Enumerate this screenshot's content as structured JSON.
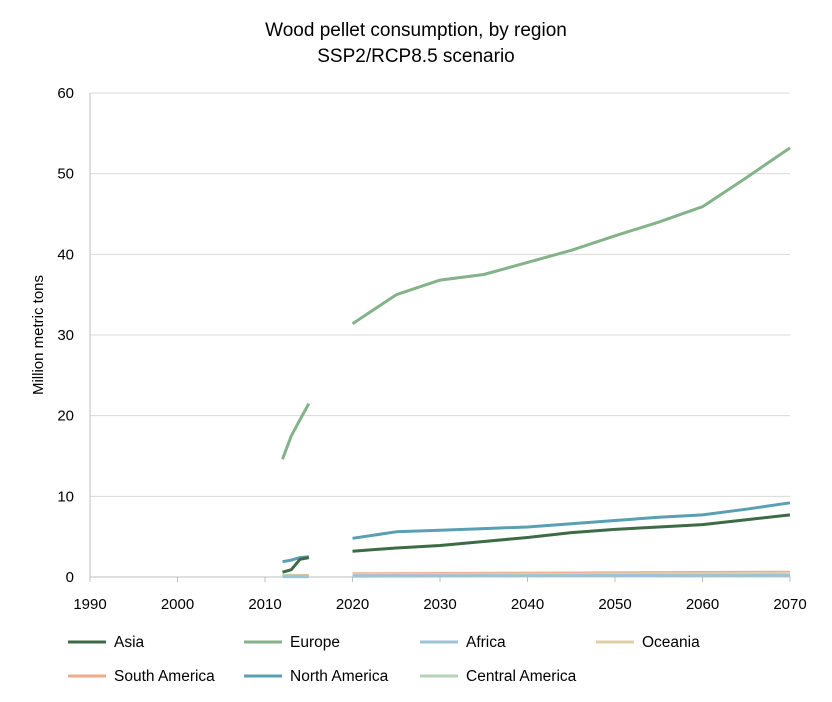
{
  "chart_data": {
    "type": "line",
    "title": "Wood pellet consumption, by region",
    "subtitle": "SSP2/RCP8.5 scenario",
    "xlabel": "",
    "ylabel": "Million metric tons",
    "xlim": [
      1990,
      2070
    ],
    "ylim": [
      0,
      60
    ],
    "x_ticks": [
      1990,
      2000,
      2010,
      2020,
      2030,
      2040,
      2050,
      2060,
      2070
    ],
    "y_ticks": [
      0,
      10,
      20,
      30,
      40,
      50,
      60
    ],
    "grid": "horizontal",
    "legend_position": "bottom",
    "series": [
      {
        "name": "Asia",
        "color": "#3d6b45",
        "segments": [
          [
            [
              2012,
              0.6
            ],
            [
              2013,
              0.9
            ],
            [
              2014,
              2.2
            ],
            [
              2015,
              2.4
            ]
          ],
          [
            [
              2020,
              3.2
            ],
            [
              2025,
              3.6
            ],
            [
              2030,
              3.9
            ],
            [
              2035,
              4.4
            ],
            [
              2040,
              4.9
            ],
            [
              2045,
              5.5
            ],
            [
              2050,
              5.9
            ],
            [
              2055,
              6.2
            ],
            [
              2060,
              6.5
            ],
            [
              2065,
              7.1
            ],
            [
              2070,
              7.7
            ]
          ]
        ]
      },
      {
        "name": "Europe",
        "color": "#84b38a",
        "segments": [
          [
            [
              2012,
              14.6
            ],
            [
              2013,
              17.5
            ],
            [
              2014,
              19.5
            ],
            [
              2015,
              21.5
            ]
          ],
          [
            [
              2020,
              31.4
            ],
            [
              2025,
              35.0
            ],
            [
              2030,
              36.8
            ],
            [
              2035,
              37.5
            ],
            [
              2040,
              39.0
            ],
            [
              2045,
              40.5
            ],
            [
              2050,
              42.3
            ],
            [
              2055,
              44.0
            ],
            [
              2060,
              45.9
            ],
            [
              2065,
              49.5
            ],
            [
              2070,
              53.2
            ]
          ]
        ]
      },
      {
        "name": "Africa",
        "color": "#9cc3d6",
        "segments": [
          [
            [
              2012,
              0.05
            ],
            [
              2015,
              0.05
            ]
          ],
          [
            [
              2020,
              0.15
            ],
            [
              2070,
              0.2
            ]
          ]
        ]
      },
      {
        "name": "Oceania",
        "color": "#e2cfa6",
        "segments": [
          [
            [
              2012,
              0.1
            ],
            [
              2015,
              0.1
            ]
          ],
          [
            [
              2020,
              0.3
            ],
            [
              2045,
              0.35
            ],
            [
              2070,
              0.45
            ]
          ]
        ]
      },
      {
        "name": "South America",
        "color": "#f0ac8a",
        "segments": [
          [
            [
              2012,
              0.1
            ],
            [
              2015,
              0.15
            ]
          ],
          [
            [
              2020,
              0.4
            ],
            [
              2045,
              0.5
            ],
            [
              2070,
              0.6
            ]
          ]
        ]
      },
      {
        "name": "North America",
        "color": "#5b9fb3",
        "segments": [
          [
            [
              2012,
              1.9
            ],
            [
              2013,
              2.1
            ],
            [
              2014,
              2.4
            ],
            [
              2015,
              2.5
            ]
          ],
          [
            [
              2020,
              4.8
            ],
            [
              2025,
              5.6
            ],
            [
              2030,
              5.8
            ],
            [
              2035,
              6.0
            ],
            [
              2040,
              6.2
            ],
            [
              2045,
              6.6
            ],
            [
              2050,
              7.0
            ],
            [
              2055,
              7.4
            ],
            [
              2060,
              7.7
            ],
            [
              2065,
              8.4
            ],
            [
              2070,
              9.2
            ]
          ]
        ]
      },
      {
        "name": "Central America",
        "color": "#b5d3b8",
        "segments": [
          [
            [
              2012,
              0.2
            ],
            [
              2015,
              0.2
            ]
          ],
          [
            [
              2020,
              0.1
            ],
            [
              2070,
              0.15
            ]
          ]
        ]
      }
    ]
  }
}
